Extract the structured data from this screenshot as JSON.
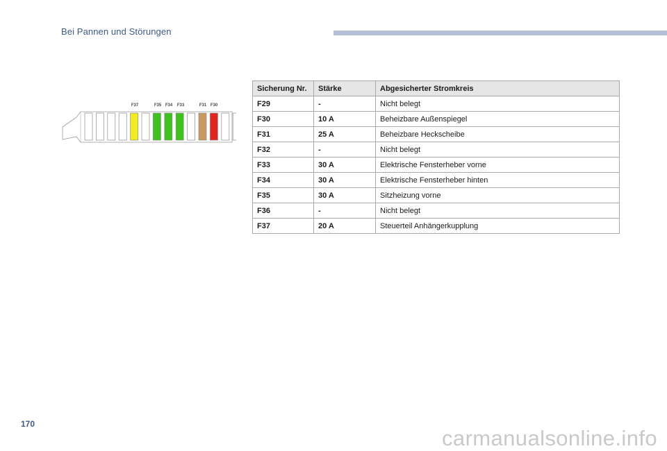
{
  "header": {
    "title": "Bei Pannen und Störungen"
  },
  "page_number": "170",
  "watermark": "carmanualsonline.info",
  "fuse_diagram": {
    "labels": [
      "F37",
      "F35",
      "F34",
      "F33",
      "F31",
      "F30"
    ],
    "colors": {
      "yellow": "#f2ec1e",
      "green": "#3ec21c",
      "tan": "#c99a5e",
      "red": "#e4231f",
      "empty": "#ffffff",
      "outline": "#8c8c8c"
    }
  },
  "table": {
    "headers": [
      "Sicherung Nr.",
      "Stärke",
      "Abgesicherter Stromkreis"
    ],
    "rows": [
      [
        "F29",
        "-",
        "Nicht belegt"
      ],
      [
        "F30",
        "10 A",
        "Beheizbare Außenspiegel"
      ],
      [
        "F31",
        "25 A",
        "Beheizbare Heckscheibe"
      ],
      [
        "F32",
        "-",
        "Nicht belegt"
      ],
      [
        "F33",
        "30 A",
        "Elektrische Fensterheber vorne"
      ],
      [
        "F34",
        "30 A",
        "Elektrische Fensterheber hinten"
      ],
      [
        "F35",
        "30 A",
        "Sitzheizung vorne"
      ],
      [
        "F36",
        "-",
        "Nicht belegt"
      ],
      [
        "F37",
        "20 A",
        "Steuerteil Anhängerkupplung"
      ]
    ]
  }
}
